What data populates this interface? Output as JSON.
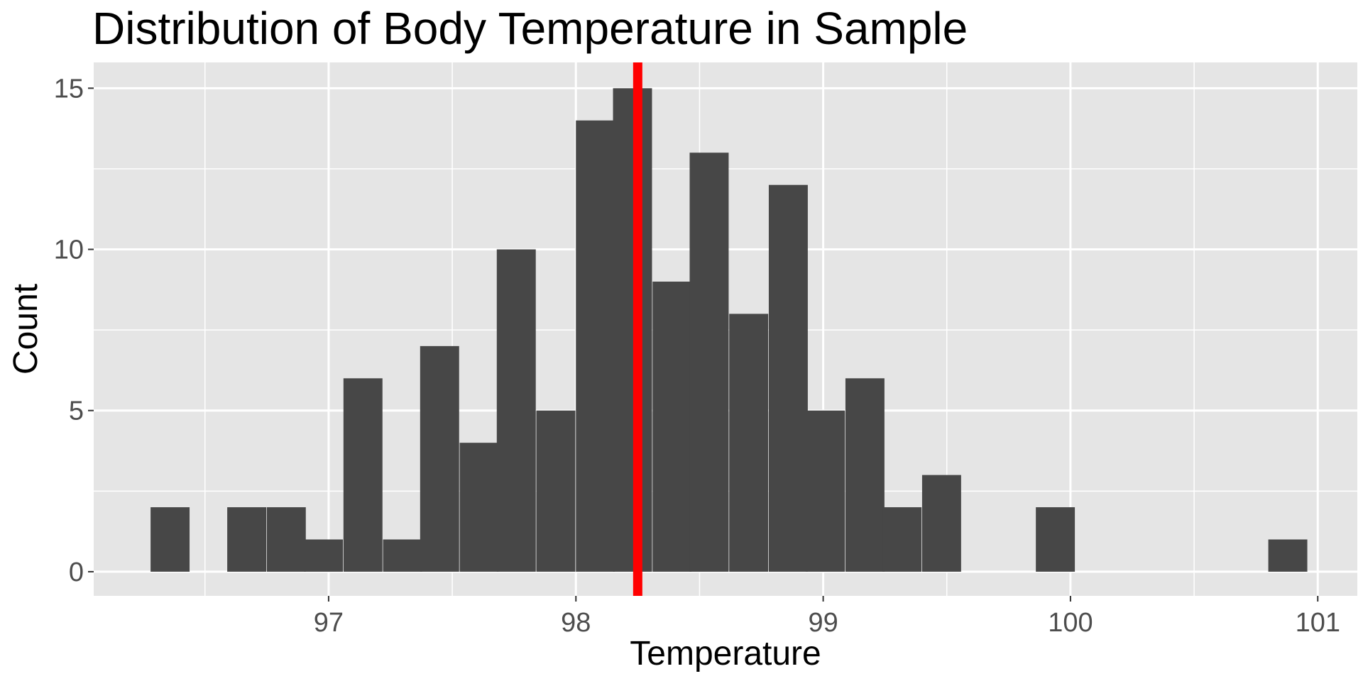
{
  "chart_data": {
    "type": "bar",
    "title": "Distribution of Body Temperature in Sample",
    "xlabel": "Temperature",
    "ylabel": "Count",
    "xlim": [
      96.05,
      101.16
    ],
    "ylim": [
      -0.75,
      15.8
    ],
    "x_ticks": [
      97,
      98,
      99,
      100,
      101
    ],
    "y_ticks": [
      0,
      5,
      10,
      15
    ],
    "grid": true,
    "legend": "none",
    "bin_width": 0.156,
    "bins": [
      {
        "x0": 96.28,
        "count": 2
      },
      {
        "x0": 96.44,
        "count": 0
      },
      {
        "x0": 96.59,
        "count": 2
      },
      {
        "x0": 96.75,
        "count": 2
      },
      {
        "x0": 96.9,
        "count": 1
      },
      {
        "x0": 97.06,
        "count": 6
      },
      {
        "x0": 97.22,
        "count": 1
      },
      {
        "x0": 97.37,
        "count": 7
      },
      {
        "x0": 97.53,
        "count": 4
      },
      {
        "x0": 97.68,
        "count": 10
      },
      {
        "x0": 97.84,
        "count": 5
      },
      {
        "x0": 98.0,
        "count": 14
      },
      {
        "x0": 98.15,
        "count": 15
      },
      {
        "x0": 98.31,
        "count": 9
      },
      {
        "x0": 98.46,
        "count": 13
      },
      {
        "x0": 98.62,
        "count": 8
      },
      {
        "x0": 98.78,
        "count": 12
      },
      {
        "x0": 98.93,
        "count": 5
      },
      {
        "x0": 99.09,
        "count": 6
      },
      {
        "x0": 99.24,
        "count": 2
      },
      {
        "x0": 99.4,
        "count": 3
      },
      {
        "x0": 99.55,
        "count": 0
      },
      {
        "x0": 99.71,
        "count": 0
      },
      {
        "x0": 99.86,
        "count": 2
      },
      {
        "x0": 100.02,
        "count": 0
      },
      {
        "x0": 100.18,
        "count": 0
      },
      {
        "x0": 100.33,
        "count": 0
      },
      {
        "x0": 100.49,
        "count": 0
      },
      {
        "x0": 100.64,
        "count": 0
      },
      {
        "x0": 100.8,
        "count": 1
      }
    ],
    "reference_line": {
      "x": 98.25,
      "color": "#ff0000"
    },
    "colors": {
      "bar_fill": "#474747",
      "panel_background": "#e5e5e5",
      "grid_line": "#ffffff",
      "reference_line": "#ff0000"
    }
  }
}
